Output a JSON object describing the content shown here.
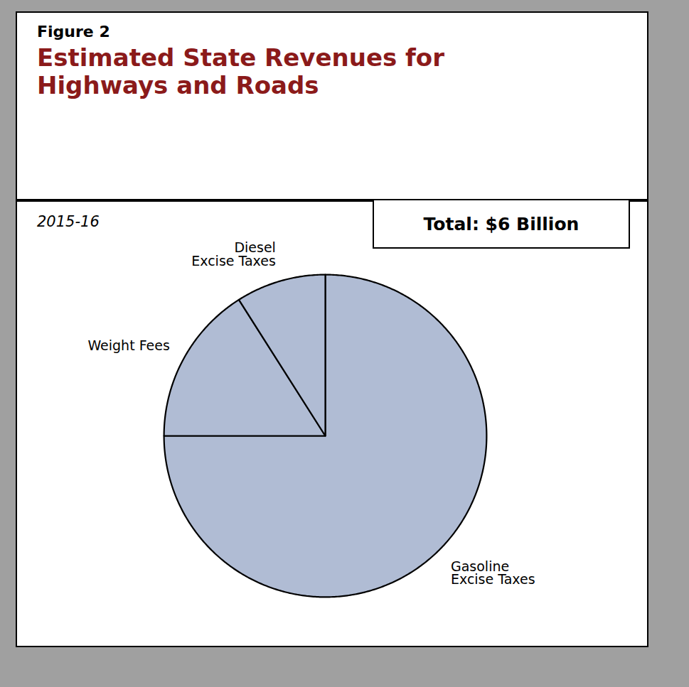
{
  "chart_data": {
    "type": "pie",
    "title": "Estimated State Revenues for\nHighways and Roads",
    "subtitle": "2015-16",
    "annotations": [
      "Figure 2",
      "Total: $6 Billion"
    ],
    "categories": [
      "Gasoline\nExcise Taxes",
      "Weight Fees",
      "Diesel\nExcise Taxes"
    ],
    "values": [
      75,
      16,
      9
    ],
    "colors": [
      "#b0bcd4",
      "#b0bcd4",
      "#b0bcd4"
    ]
  }
}
